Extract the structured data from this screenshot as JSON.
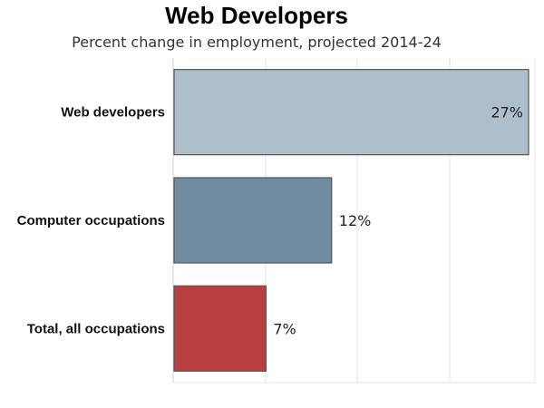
{
  "chart_data": {
    "type": "bar",
    "orientation": "horizontal",
    "title": "Web Developers",
    "subtitle": "Percent change in employment, projected 2014-24",
    "categories": [
      "Web developers",
      "Computer occupations",
      "Total, all occupations"
    ],
    "values": [
      27,
      12,
      7
    ],
    "value_labels": [
      "27%",
      "12%",
      "7%"
    ],
    "colors": [
      "#adbfcb",
      "#6f8ca3",
      "#b8403f"
    ],
    "xlim": [
      0,
      27
    ],
    "grid": true,
    "legend": "none"
  }
}
